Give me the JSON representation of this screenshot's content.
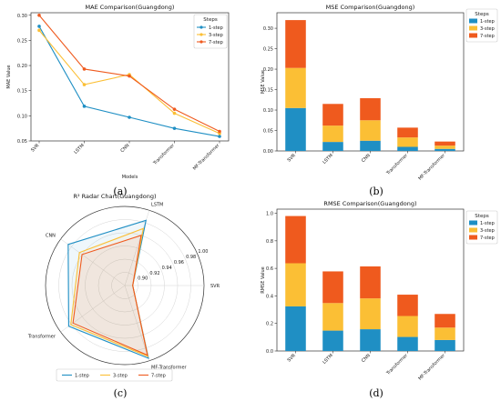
{
  "colors": {
    "s1": "#1f8fc4",
    "s3": "#fbbf35",
    "s7": "#ef5a1e"
  },
  "captions": [
    "(a)",
    "(b)",
    "(c)",
    "(d)"
  ],
  "chart_data": [
    {
      "type": "line",
      "title": "MAE Comparison(Guangdong)",
      "xlabel": "Models",
      "ylabel": "MAE Value",
      "categories": [
        "SVR",
        "LSTM",
        "CNN",
        "Transformer",
        "MF-Transformer"
      ],
      "yticks": [
        "0.05",
        "0.10",
        "0.15",
        "0.20",
        "0.25",
        "0.30"
      ],
      "ylim": [
        0.05,
        0.305
      ],
      "legend_title": "Steps",
      "legend_position": "top-right",
      "series": [
        {
          "name": "1-step",
          "values": [
            0.278,
            0.119,
            0.097,
            0.075,
            0.059
          ]
        },
        {
          "name": "3-step",
          "values": [
            0.27,
            0.162,
            0.182,
            0.105,
            0.065
          ]
        },
        {
          "name": "7-step",
          "values": [
            0.3,
            0.193,
            0.179,
            0.113,
            0.069
          ]
        }
      ]
    },
    {
      "type": "bar",
      "stacked": true,
      "title": "MSE Comparison(Guangdong)",
      "ylabel": "MSE Value",
      "categories": [
        "SVR",
        "LSTM",
        "CNN",
        "Transformer",
        "MF-Transformer"
      ],
      "yticks": [
        "0.00",
        "0.05",
        "0.10",
        "0.15",
        "0.20",
        "0.25",
        "0.30"
      ],
      "ylim": [
        0,
        0.338
      ],
      "legend_title": "Steps",
      "legend_position": "top-right",
      "series": [
        {
          "name": "1-step",
          "values": [
            0.105,
            0.022,
            0.025,
            0.01,
            0.005
          ]
        },
        {
          "name": "3-step",
          "values": [
            0.098,
            0.04,
            0.05,
            0.023,
            0.008
          ]
        },
        {
          "name": "7-step",
          "values": [
            0.117,
            0.053,
            0.054,
            0.024,
            0.01
          ]
        }
      ]
    },
    {
      "type": "radar",
      "title": "R² Radar Chart(Guangdong)",
      "axes": [
        "SVR",
        "LSTM",
        "CNN",
        "Transformer",
        "MF-Transformer"
      ],
      "rlim": [
        0.88,
        1.0
      ],
      "rticks": [
        "0.90",
        "0.92",
        "0.94",
        "0.96",
        "0.98",
        "1.00"
      ],
      "legend_position": "bottom",
      "series": [
        {
          "name": "1-step",
          "values": [
            0.892,
            0.984,
            0.986,
            0.985,
            0.996
          ]
        },
        {
          "name": "3-step",
          "values": [
            0.892,
            0.971,
            0.965,
            0.981,
            0.993
          ]
        },
        {
          "name": "7-step",
          "values": [
            0.892,
            0.96,
            0.96,
            0.977,
            0.991
          ]
        }
      ]
    },
    {
      "type": "bar",
      "stacked": true,
      "title": "RMSE Comparison(Guangdong)",
      "ylabel": "RMSE Value",
      "categories": [
        "SVR",
        "LSTM",
        "CNN",
        "Transformer",
        "MF-Transformer"
      ],
      "yticks": [
        "0.0",
        "0.2",
        "0.4",
        "0.6",
        "0.8",
        "1.0"
      ],
      "ylim": [
        0,
        1.03
      ],
      "legend_title": "Steps",
      "legend_position": "top-right",
      "series": [
        {
          "name": "1-step",
          "values": [
            0.324,
            0.148,
            0.158,
            0.102,
            0.08
          ]
        },
        {
          "name": "3-step",
          "values": [
            0.313,
            0.2,
            0.224,
            0.152,
            0.09
          ]
        },
        {
          "name": "7-step",
          "values": [
            0.343,
            0.23,
            0.232,
            0.155,
            0.099
          ]
        }
      ]
    }
  ]
}
